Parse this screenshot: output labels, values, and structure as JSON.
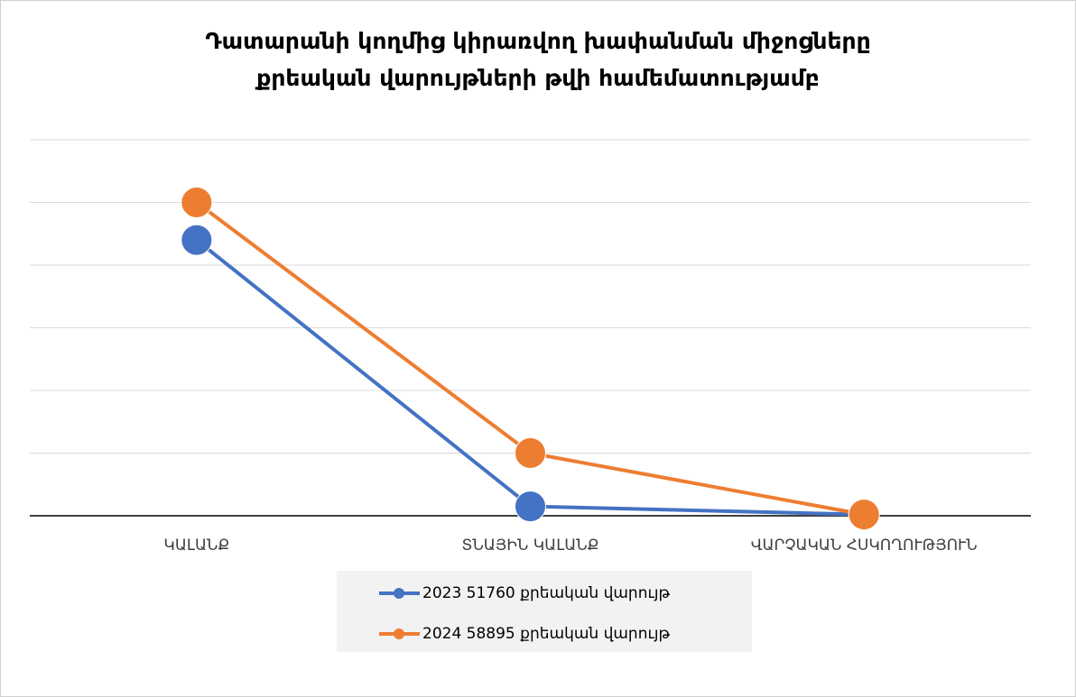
{
  "chart_data": {
    "type": "line",
    "title": [
      "Դատարանի կողմից կիրառվող խափանման միջոցները",
      "քրեական վարույթների թվի համեմատությամբ"
    ],
    "categories": [
      "ԿԱԼԱՆՔ",
      "ՏՆԱՅԻՆ ԿԱԼԱՆՔ",
      "ՎԱՐՉԱԿԱՆ ՀՍԿՈՂՈՒԹՅՈՒՆ"
    ],
    "series": [
      {
        "name": "2023 51760 քրեական վարույթ",
        "color": "#4472c4",
        "values": [
          4.4,
          0.15,
          0.02
        ]
      },
      {
        "name": "2024 58895 քրեական վարույթ",
        "color": "#ed7d31",
        "values": [
          5.0,
          1.0,
          0.02
        ]
      }
    ],
    "ylim": [
      0,
      6
    ],
    "yticks": [
      0,
      1,
      2,
      3,
      4,
      5,
      6
    ],
    "grid": true,
    "legend": "bottom"
  }
}
